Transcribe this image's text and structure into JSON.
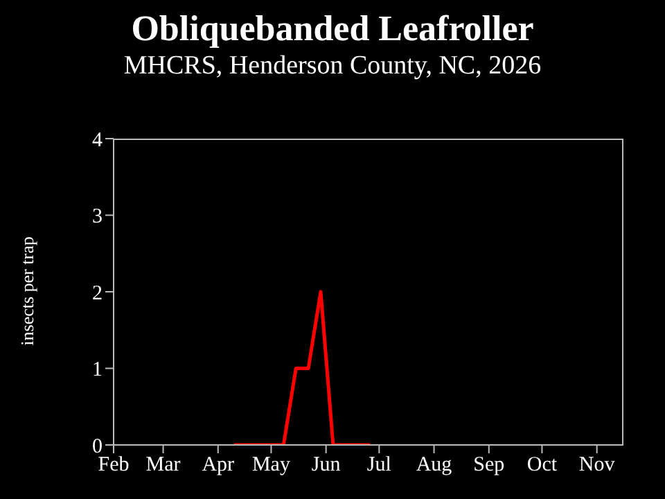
{
  "chart_data": {
    "type": "line",
    "title": "Obliquebanded Leafroller",
    "subtitle": "MHCRS, Henderson County, NC, 2026",
    "ylabel": "insects per trap",
    "x": [
      "2026-04-10",
      "2026-04-17",
      "2026-04-24",
      "2026-05-01",
      "2026-05-08",
      "2026-05-15",
      "2026-05-22",
      "2026-05-29",
      "2026-06-05",
      "2026-06-12",
      "2026-06-19",
      "2026-06-26"
    ],
    "series": [
      {
        "color": "#ff0000",
        "values": [
          0,
          0,
          0,
          0,
          0,
          1,
          1,
          2,
          0,
          0,
          0,
          0
        ]
      }
    ],
    "xlim": [
      "2026-02-01",
      "2026-11-16"
    ],
    "xticks": [
      {
        "value": "2026-02-01",
        "label": "Feb"
      },
      {
        "value": "2026-03-01",
        "label": "Mar"
      },
      {
        "value": "2026-04-01",
        "label": "Apr"
      },
      {
        "value": "2026-05-01",
        "label": "May"
      },
      {
        "value": "2026-06-01",
        "label": "Jun"
      },
      {
        "value": "2026-07-01",
        "label": "Jul"
      },
      {
        "value": "2026-08-01",
        "label": "Aug"
      },
      {
        "value": "2026-09-01",
        "label": "Sep"
      },
      {
        "value": "2026-10-01",
        "label": "Oct"
      },
      {
        "value": "2026-11-01",
        "label": "Nov"
      }
    ],
    "ylim": [
      0,
      4
    ],
    "yticks": [
      0,
      1,
      2,
      3,
      4
    ],
    "grid": false,
    "legend": false,
    "marker": "none",
    "line_style": "solid"
  }
}
